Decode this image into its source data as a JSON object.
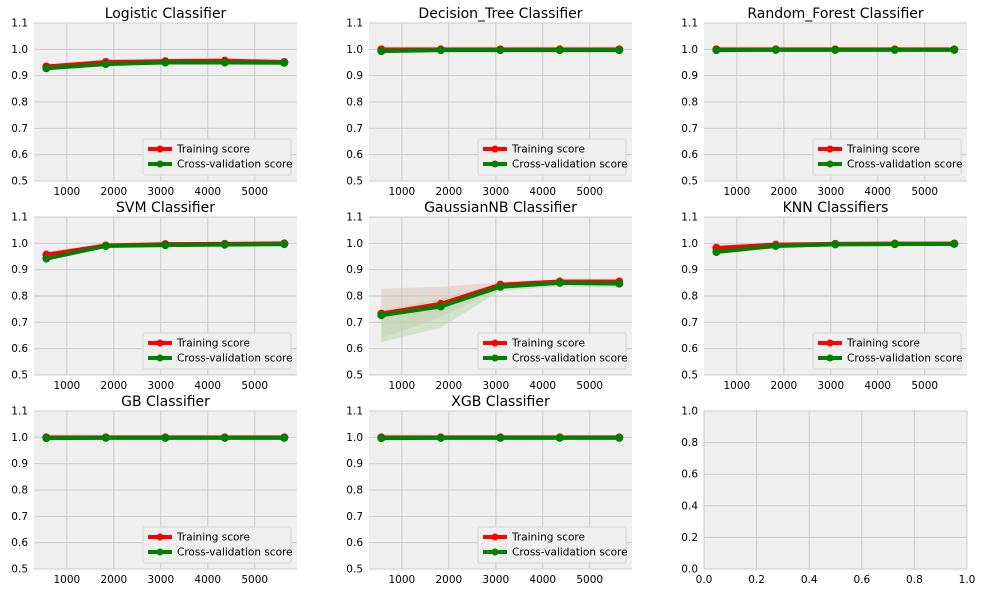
{
  "colors": {
    "axes_bg": "#efefef",
    "grid": "#cbcbcb",
    "training": "#ff0000",
    "cv": "#008000",
    "train_band": "#d9c8b8",
    "cv_band": "#b8d7b0"
  },
  "legend": {
    "training_label": "Training score",
    "cv_label": "Cross-validation score",
    "position": "lower-right"
  },
  "chart_data": [
    {
      "type": "line",
      "title": "Logistic Classifier",
      "xlabel": "",
      "ylabel": "",
      "ylim": [
        0.5,
        1.1
      ],
      "xlim": [
        300,
        5900
      ],
      "xticks": [
        1000,
        2000,
        3000,
        4000,
        5000
      ],
      "yticks": [
        0.5,
        0.6,
        0.7,
        0.8,
        0.9,
        1.0,
        1.1
      ],
      "x": [
        563,
        1829,
        3096,
        4362,
        5629
      ],
      "series": [
        {
          "name": "Training score",
          "values": [
            0.935,
            0.952,
            0.955,
            0.957,
            0.952
          ]
        },
        {
          "name": "Cross-validation score",
          "values": [
            0.928,
            0.944,
            0.95,
            0.95,
            0.949
          ]
        }
      ]
    },
    {
      "type": "line",
      "title": "Decision_Tree Classifier",
      "xlabel": "",
      "ylabel": "",
      "ylim": [
        0.5,
        1.1
      ],
      "xlim": [
        300,
        5900
      ],
      "xticks": [
        1000,
        2000,
        3000,
        4000,
        5000
      ],
      "yticks": [
        0.5,
        0.6,
        0.7,
        0.8,
        0.9,
        1.0,
        1.1
      ],
      "x": [
        563,
        1829,
        3096,
        4362,
        5629
      ],
      "series": [
        {
          "name": "Training score",
          "values": [
            1.0,
            1.0,
            1.0,
            1.0,
            1.0
          ]
        },
        {
          "name": "Cross-validation score",
          "values": [
            0.993,
            0.997,
            0.997,
            0.997,
            0.997
          ]
        }
      ]
    },
    {
      "type": "line",
      "title": "Random_Forest Classifier",
      "xlabel": "",
      "ylabel": "",
      "ylim": [
        0.5,
        1.1
      ],
      "xlim": [
        300,
        5900
      ],
      "xticks": [
        1000,
        2000,
        3000,
        4000,
        5000
      ],
      "yticks": [
        0.5,
        0.6,
        0.7,
        0.8,
        0.9,
        1.0,
        1.1
      ],
      "x": [
        563,
        1829,
        3096,
        4362,
        5629
      ],
      "series": [
        {
          "name": "Training score",
          "values": [
            1.0,
            1.0,
            1.0,
            1.0,
            1.0
          ]
        },
        {
          "name": "Cross-validation score",
          "values": [
            0.997,
            0.998,
            0.998,
            0.998,
            0.998
          ]
        }
      ]
    },
    {
      "type": "line",
      "title": "SVM Classifier",
      "xlabel": "",
      "ylabel": "",
      "ylim": [
        0.5,
        1.1
      ],
      "xlim": [
        300,
        5900
      ],
      "xticks": [
        1000,
        2000,
        3000,
        4000,
        5000
      ],
      "yticks": [
        0.5,
        0.6,
        0.7,
        0.8,
        0.9,
        1.0,
        1.1
      ],
      "x": [
        563,
        1829,
        3096,
        4362,
        5629
      ],
      "series": [
        {
          "name": "Training score",
          "values": [
            0.957,
            0.992,
            0.997,
            0.998,
            1.0
          ]
        },
        {
          "name": "Cross-validation score",
          "values": [
            0.942,
            0.99,
            0.993,
            0.995,
            0.997
          ]
        }
      ]
    },
    {
      "type": "line",
      "title": "GaussianNB Classifier",
      "xlabel": "",
      "ylabel": "",
      "ylim": [
        0.5,
        1.1
      ],
      "xlim": [
        300,
        5900
      ],
      "xticks": [
        1000,
        2000,
        3000,
        4000,
        5000
      ],
      "yticks": [
        0.5,
        0.6,
        0.7,
        0.8,
        0.9,
        1.0,
        1.1
      ],
      "x": [
        563,
        1829,
        3096,
        4362,
        5629
      ],
      "series": [
        {
          "name": "Training score",
          "values": [
            0.733,
            0.77,
            0.843,
            0.855,
            0.855
          ],
          "band_low": [
            0.64,
            0.72,
            0.83,
            0.845,
            0.848
          ],
          "band_high": [
            0.828,
            0.835,
            0.852,
            0.862,
            0.862
          ]
        },
        {
          "name": "Cross-validation score",
          "values": [
            0.727,
            0.76,
            0.835,
            0.85,
            0.847
          ],
          "band_low": [
            0.625,
            0.68,
            0.82,
            0.836,
            0.832
          ],
          "band_high": [
            0.745,
            0.79,
            0.848,
            0.862,
            0.86
          ]
        }
      ]
    },
    {
      "type": "line",
      "title": "KNN Classifiers",
      "xlabel": "",
      "ylabel": "",
      "ylim": [
        0.5,
        1.1
      ],
      "xlim": [
        300,
        5900
      ],
      "xticks": [
        1000,
        2000,
        3000,
        4000,
        5000
      ],
      "yticks": [
        0.5,
        0.6,
        0.7,
        0.8,
        0.9,
        1.0,
        1.1
      ],
      "x": [
        563,
        1829,
        3096,
        4362,
        5629
      ],
      "series": [
        {
          "name": "Training score",
          "values": [
            0.983,
            0.995,
            0.998,
            0.999,
            0.999
          ]
        },
        {
          "name": "Cross-validation score",
          "values": [
            0.967,
            0.99,
            0.996,
            0.997,
            0.998
          ]
        }
      ]
    },
    {
      "type": "line",
      "title": "GB Classifier",
      "xlabel": "",
      "ylabel": "",
      "ylim": [
        0.5,
        1.1
      ],
      "xlim": [
        300,
        5900
      ],
      "xticks": [
        1000,
        2000,
        3000,
        4000,
        5000
      ],
      "yticks": [
        0.5,
        0.6,
        0.7,
        0.8,
        0.9,
        1.0,
        1.1
      ],
      "x": [
        563,
        1829,
        3096,
        4362,
        5629
      ],
      "series": [
        {
          "name": "Training score",
          "values": [
            1.0,
            1.0,
            1.0,
            1.0,
            1.0
          ]
        },
        {
          "name": "Cross-validation score",
          "values": [
            0.997,
            0.998,
            0.998,
            0.998,
            0.998
          ]
        }
      ]
    },
    {
      "type": "line",
      "title": "XGB Classifier",
      "xlabel": "",
      "ylabel": "",
      "ylim": [
        0.5,
        1.1
      ],
      "xlim": [
        300,
        5900
      ],
      "xticks": [
        1000,
        2000,
        3000,
        4000,
        5000
      ],
      "yticks": [
        0.5,
        0.6,
        0.7,
        0.8,
        0.9,
        1.0,
        1.1
      ],
      "x": [
        563,
        1829,
        3096,
        4362,
        5629
      ],
      "series": [
        {
          "name": "Training score",
          "values": [
            1.0,
            1.0,
            1.0,
            1.0,
            1.0
          ]
        },
        {
          "name": "Cross-validation score",
          "values": [
            0.997,
            0.998,
            0.998,
            0.998,
            0.998
          ]
        }
      ]
    },
    {
      "type": "line",
      "title": "",
      "xlabel": "",
      "ylabel": "",
      "ylim": [
        0.0,
        1.0
      ],
      "xlim": [
        0.0,
        1.0
      ],
      "xticks": [
        0.0,
        0.2,
        0.4,
        0.6,
        0.8,
        1.0
      ],
      "yticks": [
        0.0,
        0.2,
        0.4,
        0.6,
        0.8,
        1.0
      ],
      "x": [],
      "series": []
    }
  ]
}
